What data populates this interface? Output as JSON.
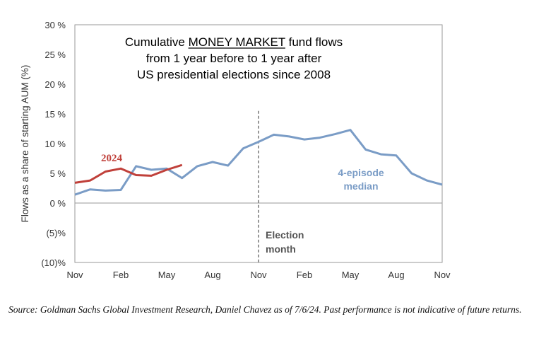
{
  "chart_data": {
    "type": "line",
    "title": [
      "Cumulative MONEY MARKET fund flows",
      "from 1 year before to 1 year after",
      "US presidential elections since 2008"
    ],
    "title_underline": "MONEY MARKET",
    "ylabel": "Flows as a share of starting AUM (%)",
    "xlabel": "",
    "ylim": [
      -10,
      30
    ],
    "yticks": [
      {
        "v": 30,
        "label": "30 %"
      },
      {
        "v": 25,
        "label": "25 %"
      },
      {
        "v": 20,
        "label": "20 %"
      },
      {
        "v": 15,
        "label": "15 %"
      },
      {
        "v": 10,
        "label": "10 %"
      },
      {
        "v": 5,
        "label": "5 %"
      },
      {
        "v": 0,
        "label": "0 %"
      },
      {
        "v": -5,
        "label": "(5)%"
      },
      {
        "v": -10,
        "label": "(10)%"
      }
    ],
    "xlim": [
      0,
      24
    ],
    "xticks": [
      {
        "v": 0,
        "label": "Nov"
      },
      {
        "v": 3,
        "label": "Feb"
      },
      {
        "v": 6,
        "label": "May"
      },
      {
        "v": 9,
        "label": "Aug"
      },
      {
        "v": 12,
        "label": "Nov"
      },
      {
        "v": 15,
        "label": "Feb"
      },
      {
        "v": 18,
        "label": "May"
      },
      {
        "v": 21,
        "label": "Aug"
      },
      {
        "v": 24,
        "label": "Nov"
      }
    ],
    "grid": false,
    "election_marker": {
      "x": 12,
      "label": [
        "Election",
        "month"
      ]
    },
    "series": [
      {
        "name": "4-episode median",
        "label": [
          "4-episode",
          "median"
        ],
        "color": "#7a9cc6",
        "x": [
          0,
          1,
          2,
          3,
          4,
          5,
          6,
          7,
          8,
          9,
          10,
          11,
          12,
          13,
          14,
          15,
          16,
          17,
          18,
          19,
          20,
          21,
          22,
          23,
          24
        ],
        "values": [
          1.4,
          2.3,
          2.1,
          2.2,
          6.2,
          5.6,
          5.8,
          4.2,
          6.2,
          6.9,
          6.3,
          9.2,
          10.3,
          11.5,
          11.2,
          10.7,
          11.0,
          11.6,
          12.3,
          9.0,
          8.2,
          8.0,
          5.0,
          3.8,
          3.1
        ]
      },
      {
        "name": "2024",
        "label": [
          "2024"
        ],
        "color": "#c0403a",
        "x": [
          0,
          1,
          2,
          3,
          4,
          5,
          6,
          7
        ],
        "values": [
          3.4,
          3.8,
          5.3,
          5.8,
          4.7,
          4.6,
          5.6,
          6.4
        ]
      }
    ]
  },
  "source_note": "Source: Goldman Sachs Global Investment Research, Daniel Chavez  as of 7/6/24. Past performance is not indicative of future returns."
}
